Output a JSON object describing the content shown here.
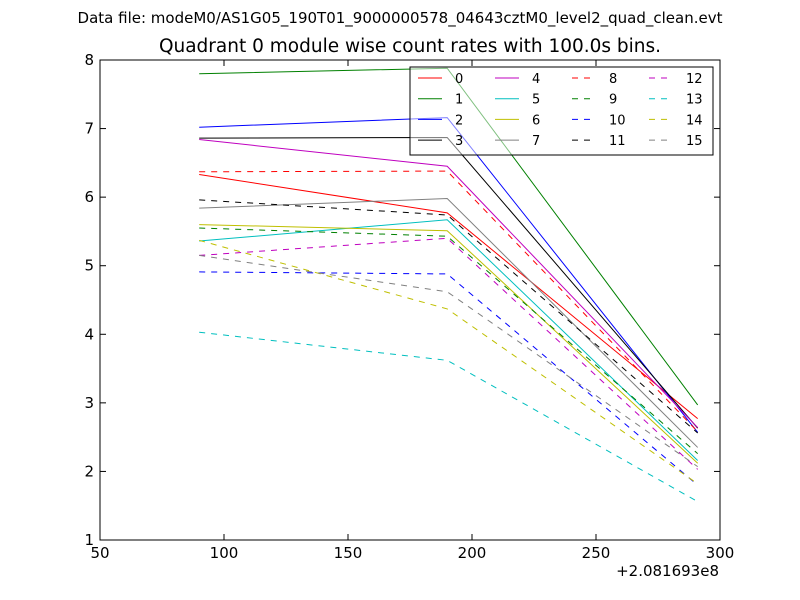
{
  "figure": {
    "suptitle": "Data file: modeM0/AS1G05_190T01_9000000578_04643cztM0_level2_quad_clean.evt"
  },
  "chart_data": {
    "type": "line",
    "title": "Quadrant 0 module wise count rates with 100.0s bins.",
    "xlabel": "",
    "ylabel": "",
    "x_offset_label": "+2.081693e8",
    "xlim": [
      50,
      300
    ],
    "ylim": [
      1,
      8
    ],
    "xticks": [
      50,
      100,
      150,
      200,
      250,
      300
    ],
    "yticks": [
      1,
      2,
      3,
      4,
      5,
      6,
      7,
      8
    ],
    "x": [
      90,
      190,
      291
    ],
    "grid": false,
    "legend": {
      "placement": "top-right",
      "columns": 4
    },
    "series": [
      {
        "name": "0",
        "color": "#ff0000",
        "style": "solid",
        "values": [
          6.33,
          5.77,
          2.77
        ]
      },
      {
        "name": "1",
        "color": "#008000",
        "style": "solid",
        "values": [
          7.8,
          7.88,
          2.97
        ]
      },
      {
        "name": "2",
        "color": "#0000ff",
        "style": "solid",
        "values": [
          7.02,
          7.16,
          2.57
        ]
      },
      {
        "name": "3",
        "color": "#000000",
        "style": "solid",
        "values": [
          6.86,
          6.87,
          2.63
        ]
      },
      {
        "name": "4",
        "color": "#bf00bf",
        "style": "solid",
        "values": [
          6.84,
          6.45,
          2.64
        ]
      },
      {
        "name": "5",
        "color": "#00bfbf",
        "style": "solid",
        "values": [
          5.36,
          5.67,
          2.16
        ]
      },
      {
        "name": "6",
        "color": "#bfbf00",
        "style": "solid",
        "values": [
          5.6,
          5.51,
          2.12
        ]
      },
      {
        "name": "7",
        "color": "#808080",
        "style": "solid",
        "values": [
          5.84,
          5.98,
          2.35
        ]
      },
      {
        "name": "8",
        "color": "#ff0000",
        "style": "dashed",
        "values": [
          6.37,
          6.38,
          2.58
        ]
      },
      {
        "name": "9",
        "color": "#008000",
        "style": "dashed",
        "values": [
          5.55,
          5.43,
          2.26
        ]
      },
      {
        "name": "10",
        "color": "#0000ff",
        "style": "dashed",
        "values": [
          4.91,
          4.88,
          1.8
        ]
      },
      {
        "name": "11",
        "color": "#000000",
        "style": "dashed",
        "values": [
          5.96,
          5.74,
          2.56
        ]
      },
      {
        "name": "12",
        "color": "#bf00bf",
        "style": "dashed",
        "values": [
          5.15,
          5.4,
          2.03
        ]
      },
      {
        "name": "13",
        "color": "#00bfbf",
        "style": "dashed",
        "values": [
          4.03,
          3.62,
          1.56
        ]
      },
      {
        "name": "14",
        "color": "#bfbf00",
        "style": "dashed",
        "values": [
          5.37,
          4.37,
          1.82
        ]
      },
      {
        "name": "15",
        "color": "#808080",
        "style": "dashed",
        "values": [
          5.15,
          4.62,
          2.07
        ]
      }
    ]
  }
}
